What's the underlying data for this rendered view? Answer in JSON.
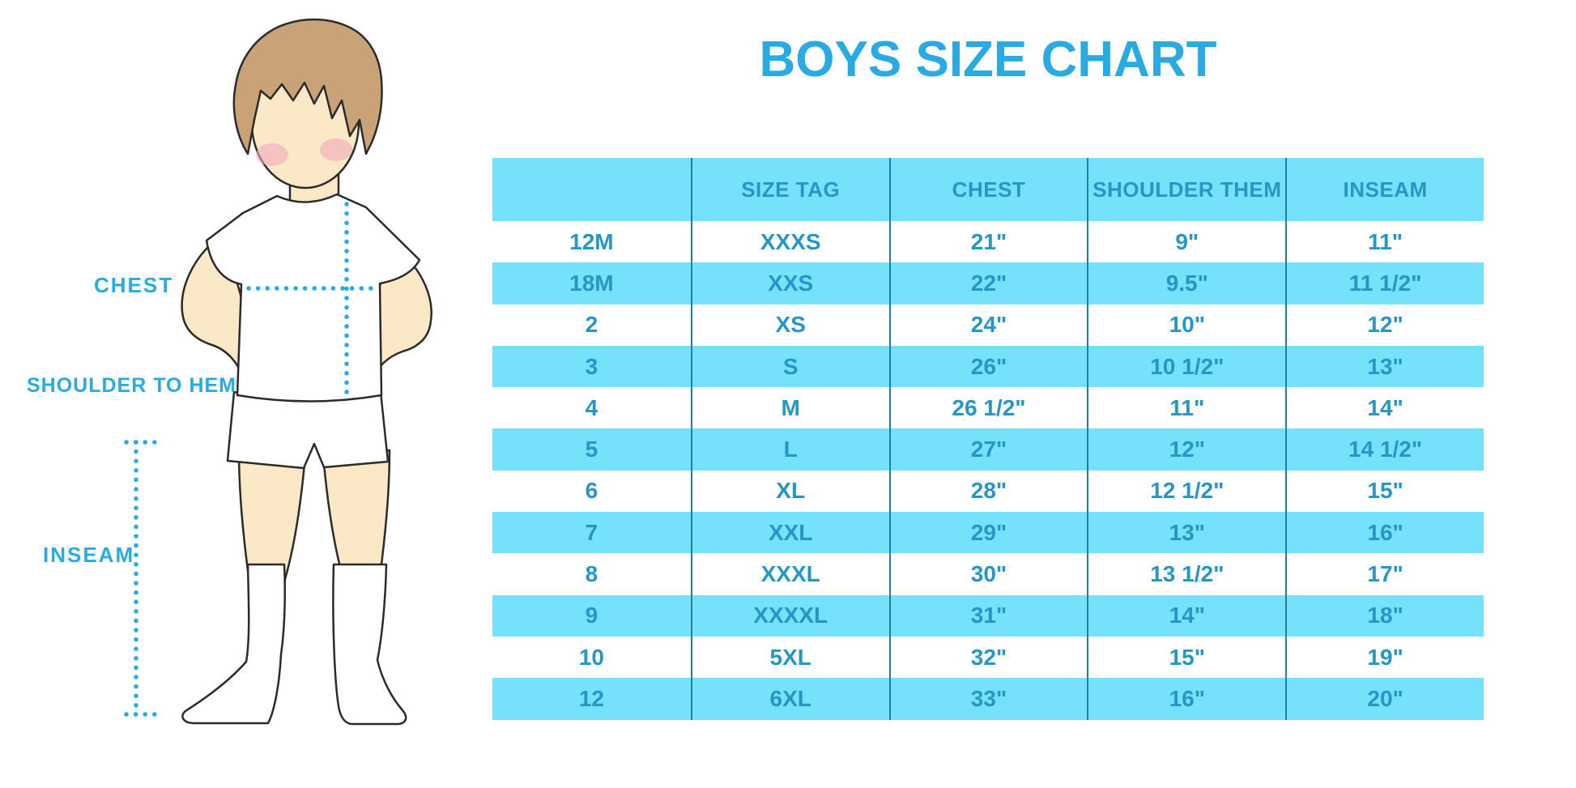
{
  "title": "BOYS SIZE CHART",
  "colors": {
    "accent_blue": "#29ABE2",
    "table_text_blue": "#2697C5",
    "row_cyan": "#75E1FA",
    "column_divider_blue": "#1C7FA8",
    "skin": "#FBE8C6",
    "hair_brown": "#C9A377",
    "blush_pink": "#F3A8BD",
    "outline": "#2B2B2B"
  },
  "illustration": {
    "figure": "boy-in-tshirt-shorts-and-knee-socks",
    "labels": {
      "chest": "CHEST",
      "shoulder_to_hem": "SHOULDER TO HEM",
      "inseam": "INSEAM"
    }
  },
  "chart_data": {
    "type": "table",
    "title": "BOYS SIZE CHART",
    "columns": [
      "",
      "SIZE TAG",
      "CHEST",
      "SHOULDER THEM",
      "INSEAM"
    ],
    "rows": [
      [
        "12M",
        "XXXS",
        "21\"",
        "9\"",
        "11\""
      ],
      [
        "18M",
        "XXS",
        "22\"",
        "9.5\"",
        "11 1/2\""
      ],
      [
        "2",
        "XS",
        "24\"",
        "10\"",
        "12\""
      ],
      [
        "3",
        "S",
        "26\"",
        "10 1/2\"",
        "13\""
      ],
      [
        "4",
        "M",
        "26 1/2\"",
        "11\"",
        "14\""
      ],
      [
        "5",
        "L",
        "27\"",
        "12\"",
        "14 1/2\""
      ],
      [
        "6",
        "XL",
        "28\"",
        "12 1/2\"",
        "15\""
      ],
      [
        "7",
        "XXL",
        "29\"",
        "13\"",
        "16\""
      ],
      [
        "8",
        "XXXL",
        "30\"",
        "13 1/2\"",
        "17\""
      ],
      [
        "9",
        "XXXXL",
        "31\"",
        "14\"",
        "18\""
      ],
      [
        "10",
        "5XL",
        "32\"",
        "15\"",
        "19\""
      ],
      [
        "12",
        "6XL",
        "33\"",
        "16\"",
        "20\""
      ]
    ],
    "layout": {
      "alternating_row_fill": true,
      "header_fill": "#75E1FA",
      "grid": "vertical-dividers-only"
    }
  }
}
